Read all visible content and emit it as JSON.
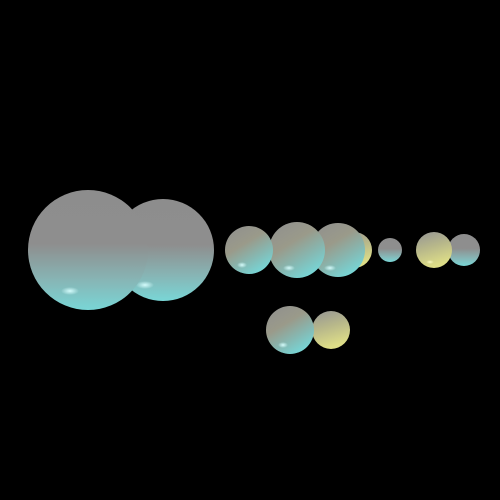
{
  "scene": {
    "background": "#000000",
    "spheres": [
      {
        "name": "sphere-large-left",
        "tint": "cyan"
      },
      {
        "name": "sphere-large-right",
        "tint": "cyan"
      },
      {
        "name": "sphere-mid-1",
        "tint": "cyan-yellow"
      },
      {
        "name": "sphere-mid-2",
        "tint": "cyan-yellow"
      },
      {
        "name": "sphere-mid-3",
        "tint": "cyan-yellow"
      },
      {
        "name": "sphere-mid-4",
        "tint": "yellow"
      },
      {
        "name": "sphere-small",
        "tint": "cyan"
      },
      {
        "name": "sphere-right-1",
        "tint": "yellow"
      },
      {
        "name": "sphere-right-2",
        "tint": "cyan"
      },
      {
        "name": "sphere-bottom-1",
        "tint": "cyan-yellow"
      },
      {
        "name": "sphere-bottom-2",
        "tint": "yellow"
      }
    ],
    "colors": {
      "top": "#8e8e8e",
      "cyan": "#7ad8d8",
      "yellow": "#e2e28a",
      "highlight": "#c8ffff"
    }
  }
}
